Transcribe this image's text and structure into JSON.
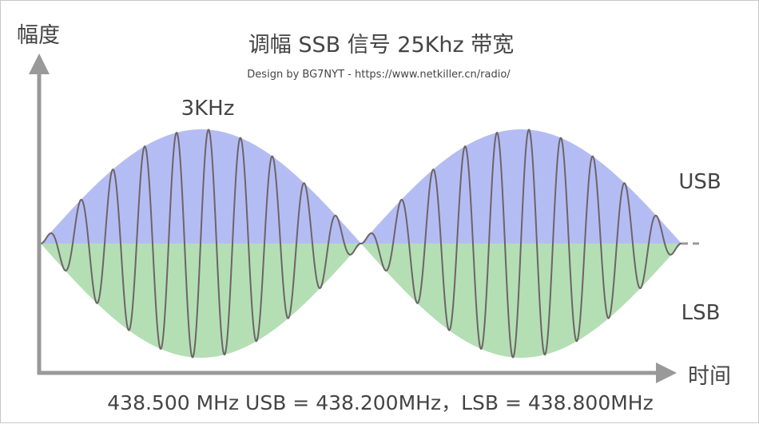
{
  "title": "调幅 SSB 信号 25Khz 带宽",
  "subtitle": "Design by BG7NYT - https://www.netkiller.cn/radio/",
  "y_axis_label": "幅度",
  "x_axis_label": "时间",
  "wave_label": "3KHz",
  "usb_label": "USB",
  "lsb_label": "LSB",
  "caption": "438.500 MHz USB = 438.200MHz，LSB = 438.800MHz",
  "colors": {
    "usb_fill": "#b4bdf3",
    "lsb_fill": "#b4dfb4",
    "carrier": "#6e6368",
    "axis": "#999999",
    "text": "#444444"
  }
}
